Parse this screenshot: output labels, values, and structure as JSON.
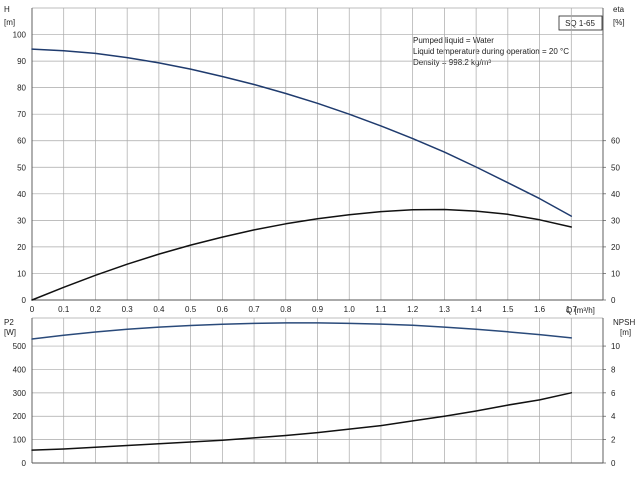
{
  "chart_data": [
    {
      "type": "line",
      "model_label": "SQ 1-65",
      "notes": [
        "Pumped liquid = Water",
        "Liquid temperature during operation = 20 °C",
        "Density = 998.2 kg/m³"
      ],
      "x_label": "Q [m³/h]",
      "x_ticks": [
        "0",
        "0.1",
        "0.2",
        "0.3",
        "0.4",
        "0.5",
        "0.6",
        "0.7",
        "0.8",
        "0.9",
        "1.0",
        "1.1",
        "1.2",
        "1.3",
        "1.4",
        "1.5",
        "1.6",
        "1.7"
      ],
      "xlim": [
        0,
        1.8
      ],
      "y_left": {
        "label_top": "H",
        "label_bottom": "[m]",
        "ticks": [
          "0",
          "10",
          "20",
          "30",
          "40",
          "50",
          "60",
          "70",
          "80",
          "90",
          "100"
        ],
        "lim": [
          0,
          110
        ]
      },
      "y_right": {
        "label_top": "eta",
        "label_bottom": "[%]",
        "ticks": [
          "0",
          "10",
          "20",
          "30",
          "40",
          "50",
          "60"
        ],
        "lim": [
          0,
          110
        ]
      },
      "grid": true,
      "series": [
        {
          "axis": "left",
          "color": "#1f3b6e",
          "x": [
            0,
            0.1,
            0.2,
            0.3,
            0.4,
            0.5,
            0.6,
            0.7,
            0.8,
            0.9,
            1.0,
            1.1,
            1.2,
            1.3,
            1.4,
            1.5,
            1.6,
            1.7
          ],
          "values": [
            94.5,
            93.9,
            92.9,
            91.3,
            89.3,
            87,
            84.2,
            81.2,
            77.8,
            74.1,
            70,
            65.6,
            60.8,
            55.7,
            50.1,
            44.2,
            38.2,
            31.6
          ]
        },
        {
          "axis": "right",
          "color": "#111111",
          "x": [
            0,
            0.1,
            0.2,
            0.3,
            0.4,
            0.5,
            0.6,
            0.7,
            0.8,
            0.9,
            1.0,
            1.1,
            1.2,
            1.3,
            1.4,
            1.5,
            1.6,
            1.7
          ],
          "values": [
            0,
            4.8,
            9.3,
            13.5,
            17.3,
            20.7,
            23.7,
            26.4,
            28.7,
            30.6,
            32.1,
            33.3,
            34,
            34.1,
            33.5,
            32.3,
            30.2,
            27.5
          ]
        }
      ]
    },
    {
      "type": "line",
      "x_ticks": [
        "0",
        "0.1",
        "0.2",
        "0.3",
        "0.4",
        "0.5",
        "0.6",
        "0.7",
        "0.8",
        "0.9",
        "1.0",
        "1.1",
        "1.2",
        "1.3",
        "1.4",
        "1.5",
        "1.6",
        "1.7"
      ],
      "xlim": [
        0,
        1.8
      ],
      "y_left": {
        "label_top": "P2",
        "label_bottom": "[W]",
        "ticks": [
          "0",
          "100",
          "200",
          "300",
          "400",
          "500"
        ],
        "lim": [
          0,
          620
        ]
      },
      "y_right": {
        "label_top": "NPSH",
        "label_bottom": "[m]",
        "ticks": [
          "0",
          "2",
          "4",
          "6",
          "8",
          "10"
        ],
        "lim": [
          0,
          12.4
        ]
      },
      "grid": true,
      "series": [
        {
          "axis": "left",
          "color": "#2a4a7a",
          "x": [
            0,
            0.1,
            0.2,
            0.3,
            0.4,
            0.5,
            0.6,
            0.7,
            0.8,
            0.9,
            1.0,
            1.1,
            1.2,
            1.3,
            1.4,
            1.5,
            1.6,
            1.7
          ],
          "values": [
            530,
            546,
            560,
            572,
            581,
            588,
            593,
            597,
            599,
            599,
            597,
            594,
            589,
            581,
            572,
            561,
            549,
            535
          ]
        },
        {
          "axis": "right",
          "color": "#111111",
          "x": [
            0,
            0.1,
            0.2,
            0.3,
            0.4,
            0.5,
            0.6,
            0.7,
            0.8,
            0.9,
            1.0,
            1.1,
            1.2,
            1.3,
            1.4,
            1.5,
            1.6,
            1.7
          ],
          "values": [
            1.1,
            1.2,
            1.35,
            1.5,
            1.65,
            1.8,
            1.95,
            2.15,
            2.35,
            2.6,
            2.9,
            3.2,
            3.6,
            4.0,
            4.45,
            4.95,
            5.4,
            6.0
          ]
        }
      ]
    }
  ]
}
